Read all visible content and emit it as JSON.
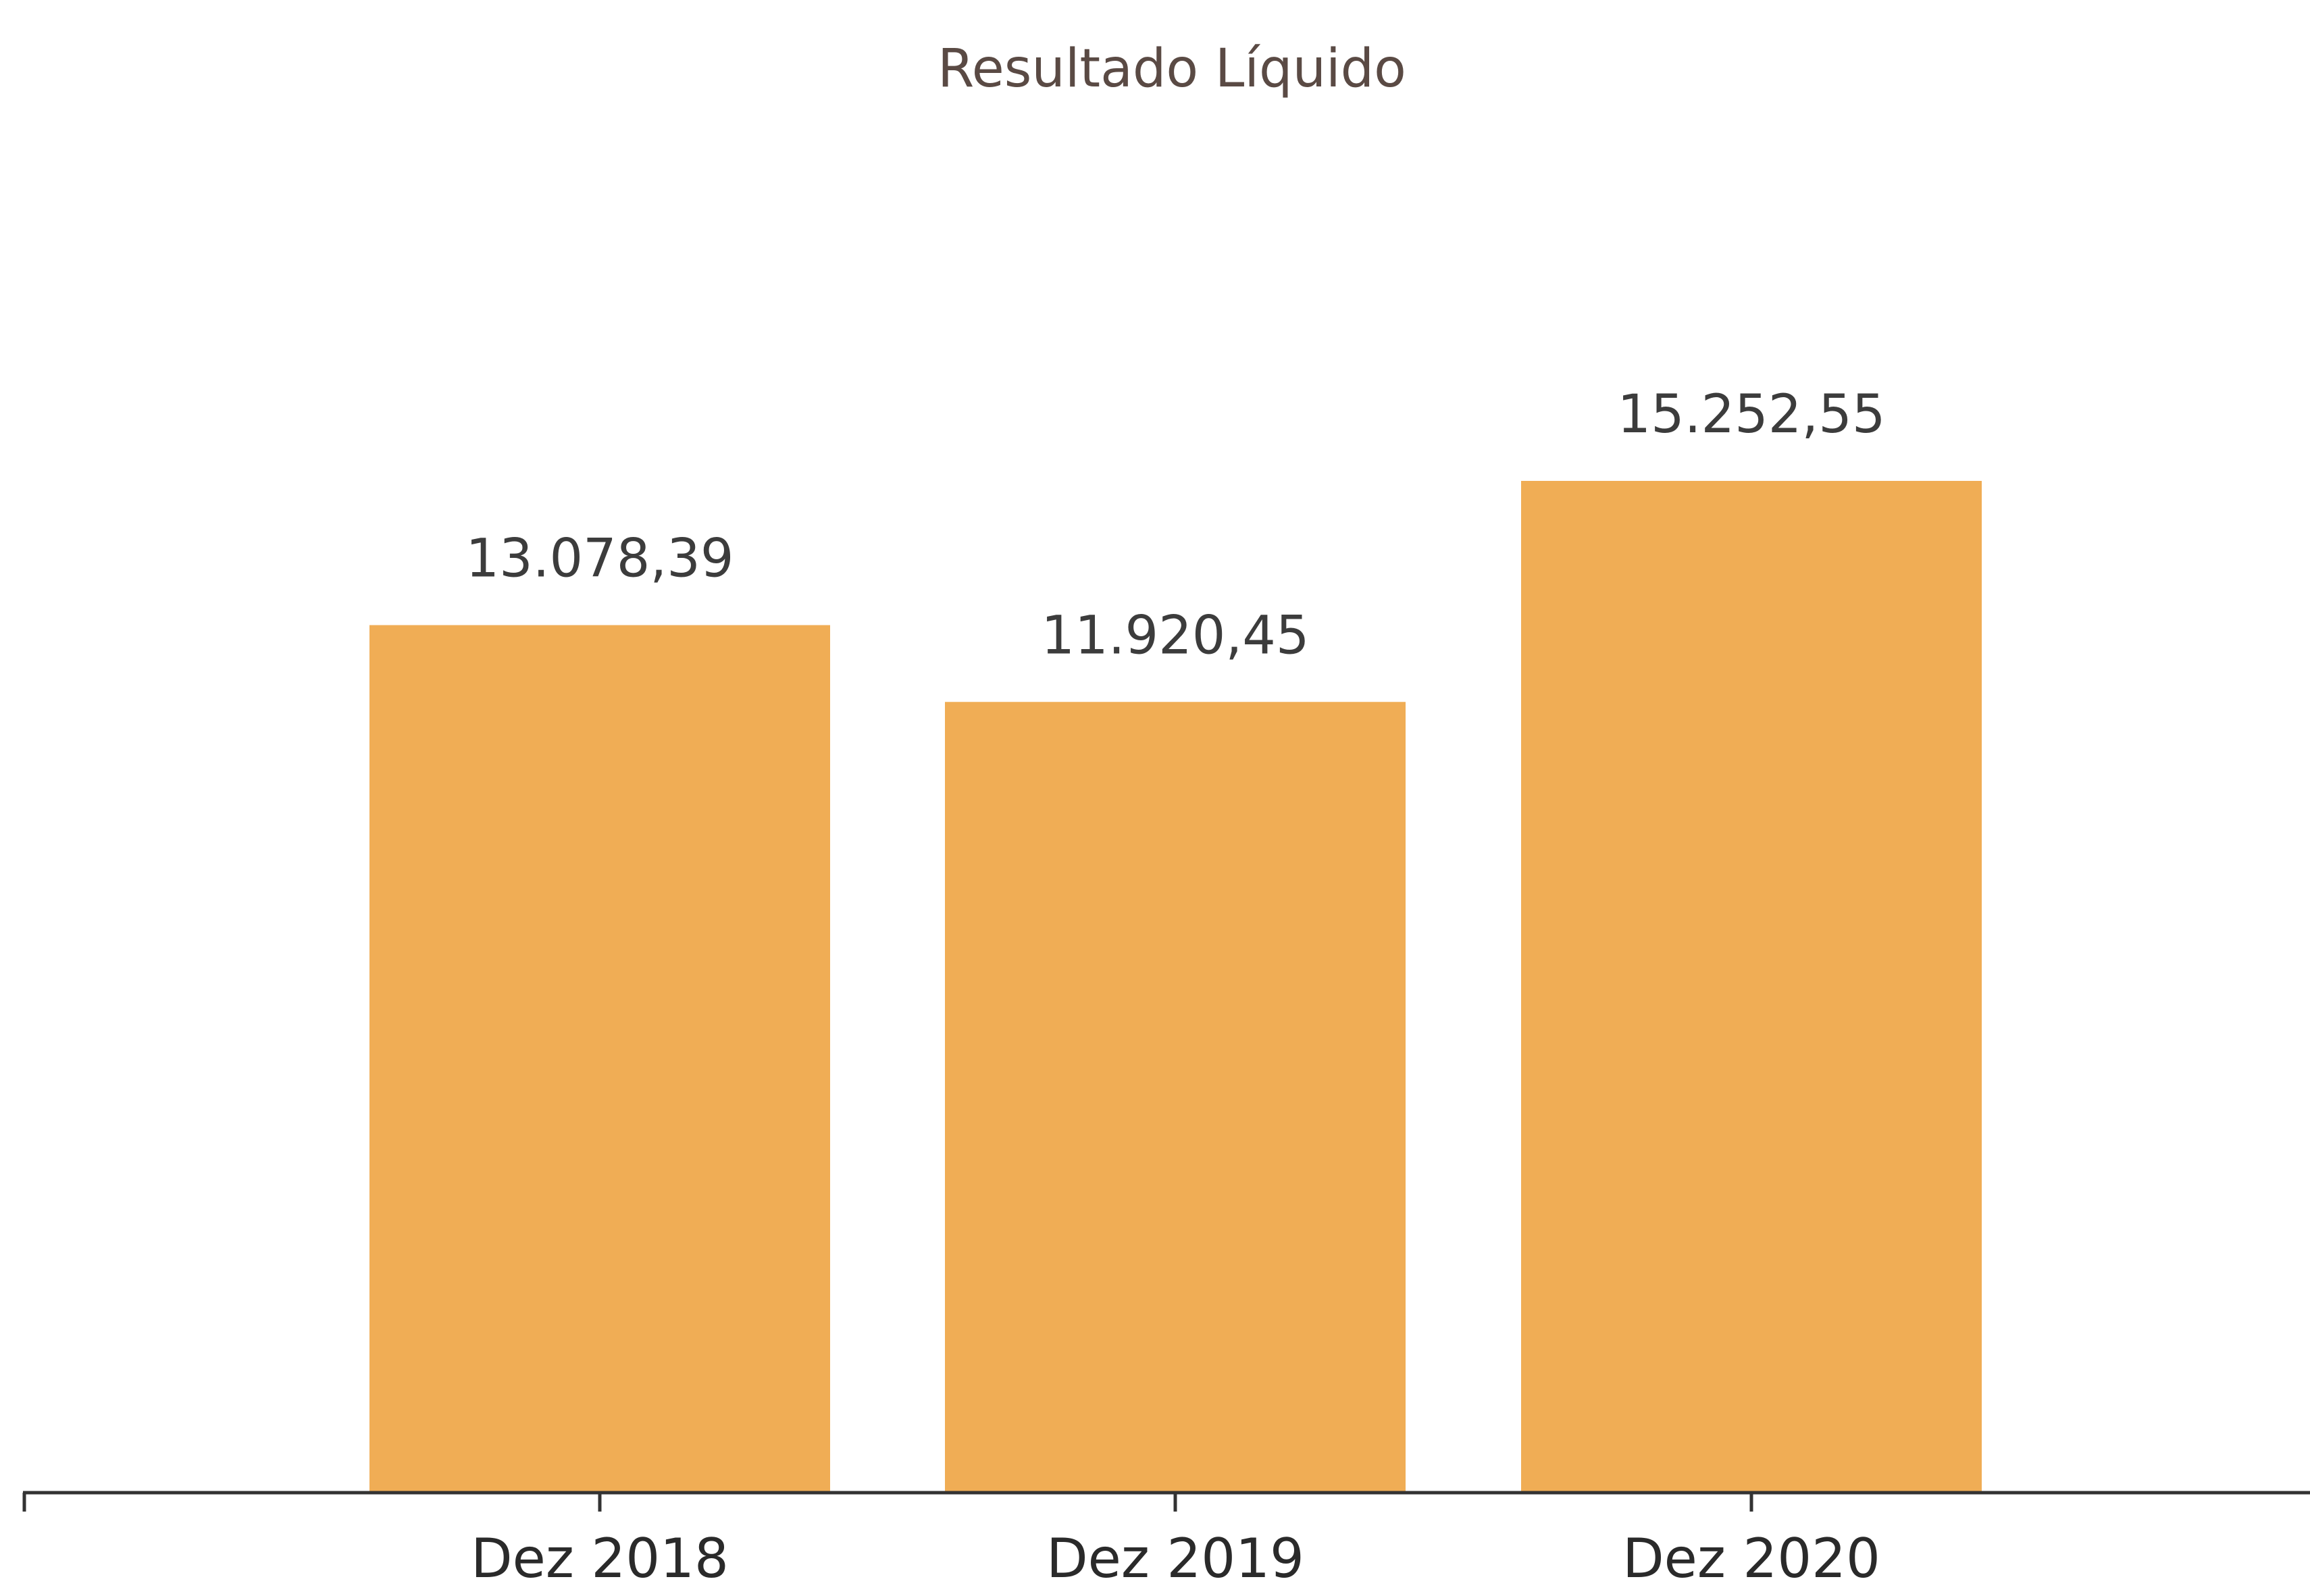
{
  "chart_data": {
    "type": "bar",
    "title": "Resultado Líquido",
    "categories": [
      "Dez 2018",
      "Dez 2019",
      "Dez 2020"
    ],
    "values": [
      13078.39,
      11920.45,
      15252.55
    ],
    "value_labels": [
      "13.078,39",
      "11.920,45",
      "15.252,55"
    ],
    "xlabel": "",
    "ylabel": "",
    "ylim": [
      0,
      15252.55
    ],
    "grid": false,
    "legend": "none",
    "bar_color": "#f0ad55"
  }
}
